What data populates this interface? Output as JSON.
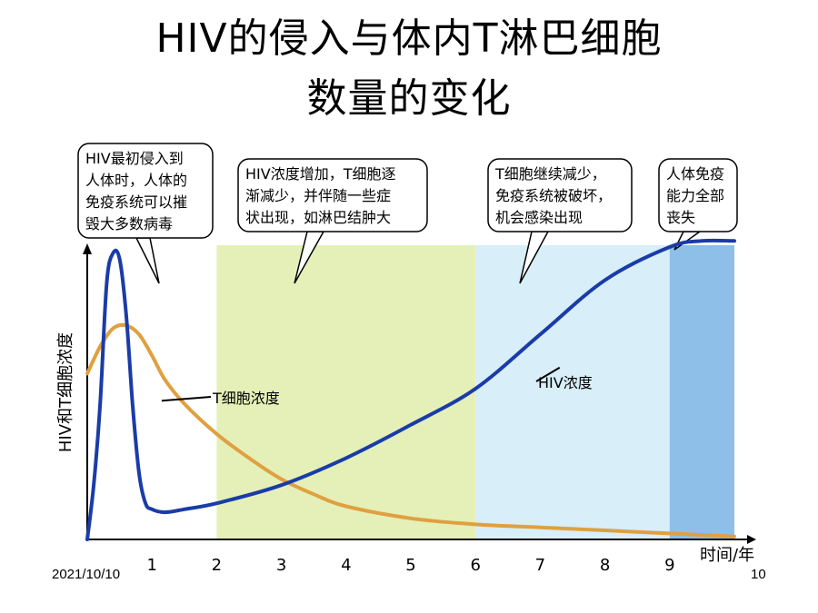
{
  "slide": {
    "title_line1": "HIV的侵入与体内T淋巴细胞",
    "title_line2": "数量的变化",
    "date": "2021/10/10",
    "page_number": "10"
  },
  "chart_data": {
    "type": "line",
    "title": "",
    "xlabel": "时间/年",
    "ylabel": "HIV和T细胞浓度",
    "xlim": [
      0,
      10
    ],
    "x_ticks": [
      "1",
      "2",
      "3",
      "4",
      "5",
      "6",
      "7",
      "8",
      "9"
    ],
    "series": [
      {
        "name": "T细胞浓度",
        "color": "#e0a040",
        "x": [
          0,
          0.2,
          0.4,
          0.6,
          0.8,
          1.0,
          1.2,
          1.5,
          2.0,
          2.5,
          3.0,
          3.5,
          4.0,
          5.0,
          6.0,
          7.0,
          8.0,
          9.0,
          10.0
        ],
        "y": [
          0.55,
          0.64,
          0.7,
          0.71,
          0.68,
          0.61,
          0.53,
          0.45,
          0.35,
          0.27,
          0.2,
          0.15,
          0.11,
          0.07,
          0.05,
          0.04,
          0.03,
          0.02,
          0.01
        ]
      },
      {
        "name": "HIV浓度",
        "color": "#1a3ca8",
        "x": [
          0,
          0.1,
          0.2,
          0.3,
          0.4,
          0.5,
          0.6,
          0.7,
          0.8,
          0.9,
          1.0,
          1.2,
          1.5,
          2.0,
          3.0,
          4.0,
          5.0,
          6.0,
          7.0,
          8.0,
          9.0,
          9.5,
          10.0
        ],
        "y": [
          0.0,
          0.18,
          0.45,
          0.85,
          0.95,
          0.93,
          0.75,
          0.45,
          0.22,
          0.12,
          0.1,
          0.09,
          0.1,
          0.12,
          0.18,
          0.27,
          0.38,
          0.5,
          0.68,
          0.86,
          0.97,
          0.99,
          0.99
        ]
      }
    ],
    "series_labels": {
      "t_cell": "T细胞浓度",
      "hiv": "HIV浓度"
    },
    "phase_bands": [
      {
        "from": 2,
        "to": 6,
        "color": "#e4f0b8"
      },
      {
        "from": 6,
        "to": 9,
        "color": "#d8eef8"
      },
      {
        "from": 9,
        "to": 10,
        "color": "#8dbfe8"
      }
    ],
    "annotations": [
      {
        "id": "a1",
        "lines": [
          "HIV最初侵入到",
          "人体时，人体的",
          "免疫系统可以摧",
          "毁大多数病毒"
        ]
      },
      {
        "id": "a2",
        "lines": [
          "HIV浓度增加，T细胞逐",
          "渐减少，并伴随一些症",
          "状出现，如淋巴结肿大"
        ]
      },
      {
        "id": "a3",
        "lines": [
          "T细胞继续减少，",
          "免疫系统被破坏，",
          "机会感染出现"
        ]
      },
      {
        "id": "a4",
        "lines": [
          "人体免疫",
          "能力全部",
          "丧失"
        ]
      }
    ]
  }
}
